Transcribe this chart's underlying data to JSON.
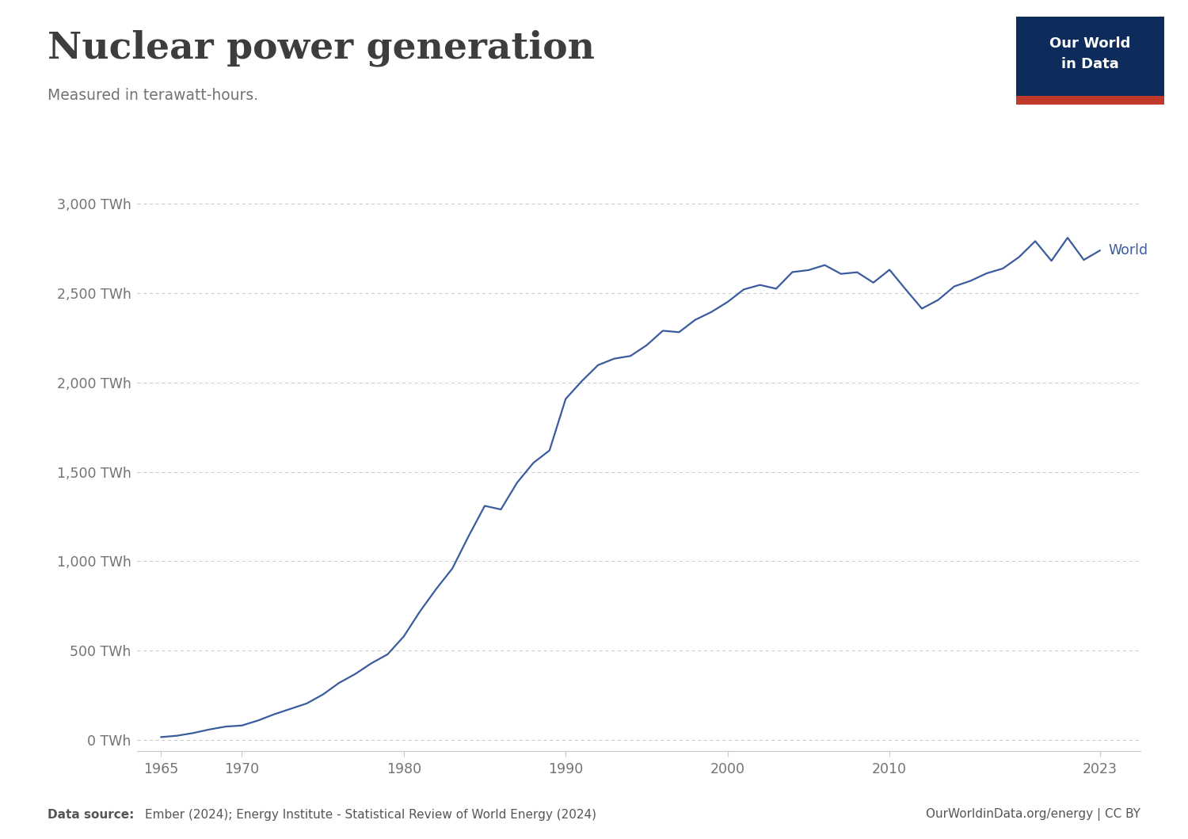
{
  "title": "Nuclear power generation",
  "subtitle": "Measured in terawatt-hours.",
  "line_color": "#3a5c9e",
  "background_color": "#ffffff",
  "line_label": "World",
  "datasource_left": "Data source: Ember (2024); Energy Institute - Statistical Review of World Energy (2024)",
  "datasource_right": "OurWorldinData.org/energy | CC BY",
  "logo_bg": "#0d2c5b",
  "logo_red": "#c0392b",
  "ytick_labels": [
    "0 TWh",
    "500 TWh",
    "1,000 TWh",
    "1,500 TWh",
    "2,000 TWh",
    "2,500 TWh",
    "3,000 TWh"
  ],
  "ytick_values": [
    0,
    500,
    1000,
    1500,
    2000,
    2500,
    3000
  ],
  "xtick_labels": [
    "1965",
    "1970",
    "1980",
    "1990",
    "2000",
    "2010",
    "2023"
  ],
  "xtick_values": [
    1965,
    1970,
    1980,
    1990,
    2000,
    2010,
    2023
  ],
  "years": [
    1965,
    1966,
    1967,
    1968,
    1969,
    1970,
    1971,
    1972,
    1973,
    1974,
    1975,
    1976,
    1977,
    1978,
    1979,
    1980,
    1981,
    1982,
    1983,
    1984,
    1985,
    1986,
    1987,
    1988,
    1989,
    1990,
    1991,
    1992,
    1993,
    1994,
    1995,
    1996,
    1997,
    1998,
    1999,
    2000,
    2001,
    2002,
    2003,
    2004,
    2005,
    2006,
    2007,
    2008,
    2009,
    2010,
    2011,
    2012,
    2013,
    2014,
    2015,
    2016,
    2017,
    2018,
    2019,
    2020,
    2021,
    2022,
    2023
  ],
  "values": [
    17,
    25,
    40,
    60,
    76,
    82,
    110,
    145,
    175,
    205,
    255,
    320,
    370,
    430,
    480,
    580,
    720,
    845,
    960,
    1140,
    1310,
    1290,
    1440,
    1550,
    1620,
    1908,
    2008,
    2097,
    2133,
    2148,
    2208,
    2289,
    2281,
    2350,
    2394,
    2450,
    2520,
    2545,
    2524,
    2617,
    2628,
    2656,
    2607,
    2616,
    2558,
    2630,
    2520,
    2413,
    2461,
    2537,
    2568,
    2610,
    2637,
    2701,
    2790,
    2680,
    2809,
    2685,
    2738
  ]
}
